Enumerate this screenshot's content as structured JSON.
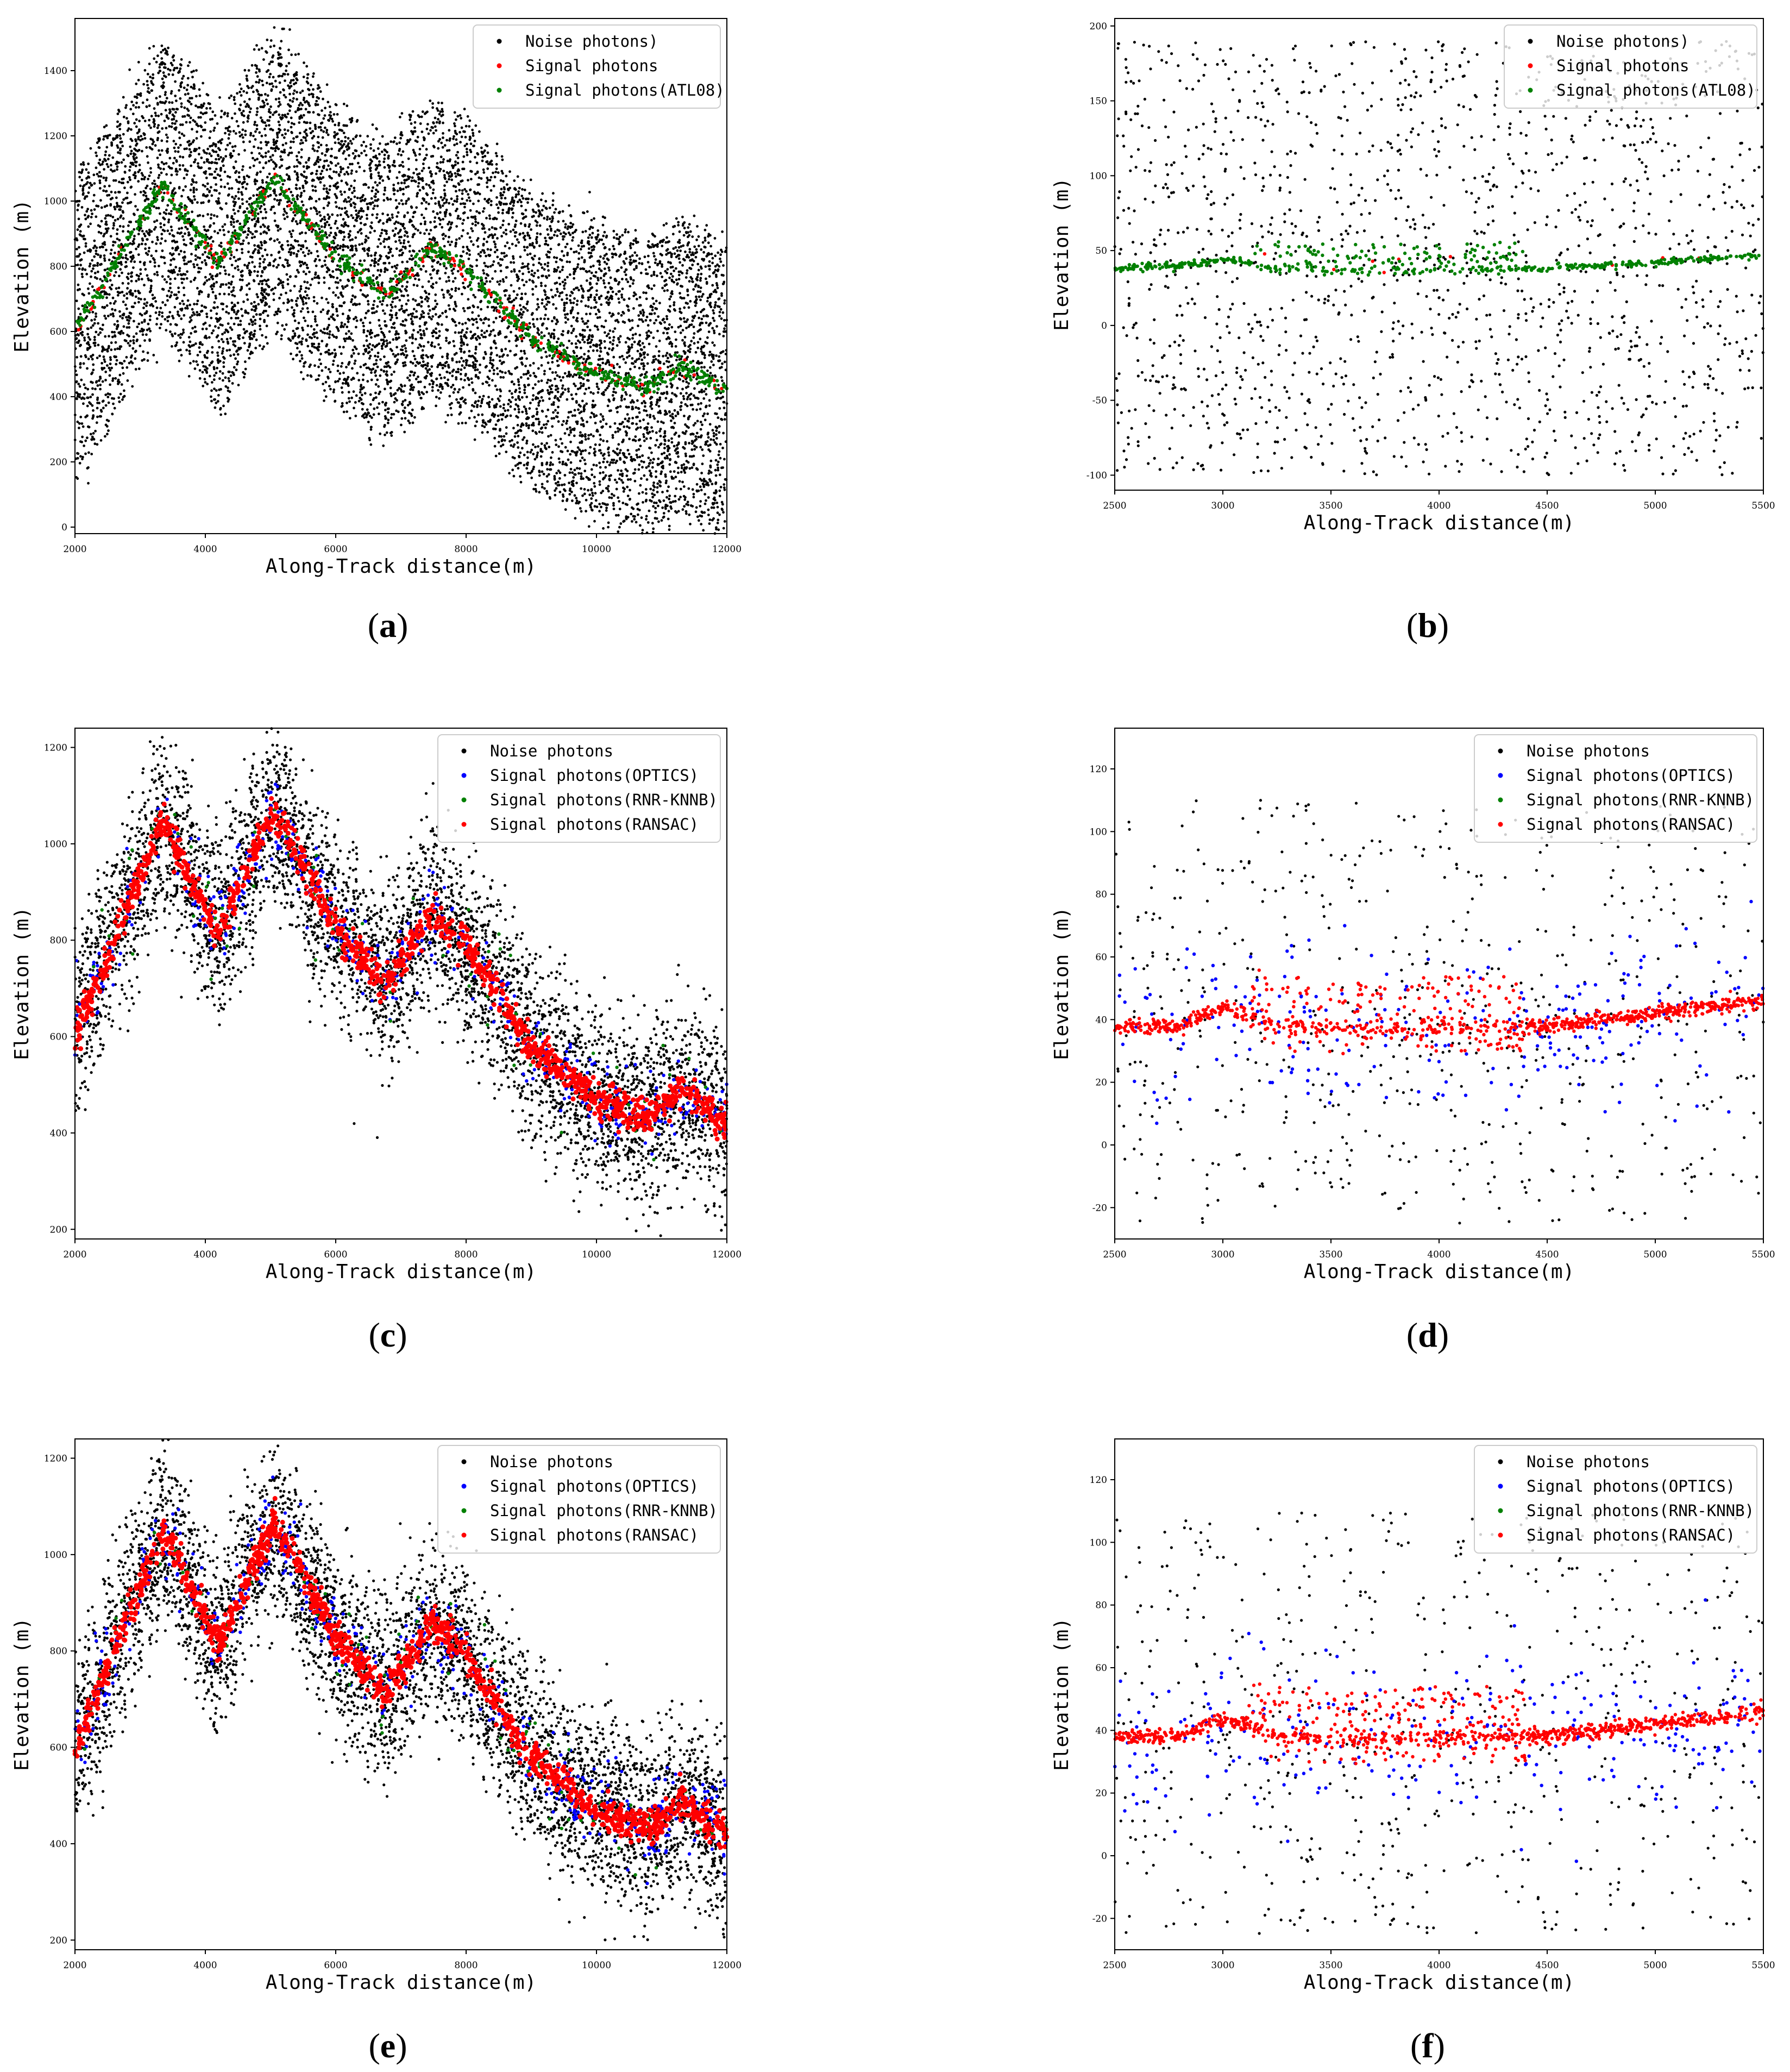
{
  "figure": {
    "panels": [
      {
        "id": "a",
        "label_prefix": "(",
        "label_letter": "a",
        "label_suffix": ")"
      },
      {
        "id": "b",
        "label_prefix": "(",
        "label_letter": "b",
        "label_suffix": ")"
      },
      {
        "id": "c",
        "label_prefix": "(",
        "label_letter": "c",
        "label_suffix": ")"
      },
      {
        "id": "d",
        "label_prefix": "(",
        "label_letter": "d",
        "label_suffix": ")"
      },
      {
        "id": "e",
        "label_prefix": "(",
        "label_letter": "e",
        "label_suffix": ")"
      },
      {
        "id": "f",
        "label_prefix": "(",
        "label_letter": "f",
        "label_suffix": ")"
      }
    ]
  },
  "colors": {
    "noise": "#000000",
    "signal_red": "#ff0000",
    "signal_green": "#008000",
    "signal_blue": "#0000ff",
    "axis": "#000000"
  },
  "chart_data": [
    {
      "id": "a",
      "type": "scatter",
      "xlabel": "Along-Track distance(m)",
      "ylabel": "Elevation (m)",
      "xlim": [
        2000,
        12000
      ],
      "ylim": [
        -20,
        1560
      ],
      "xticks": [
        2000,
        4000,
        6000,
        8000,
        10000,
        12000
      ],
      "yticks": [
        0,
        200,
        400,
        600,
        800,
        1000,
        1200,
        1400
      ],
      "legend": [
        "Noise photons)",
        "Signal photons",
        "Signal photons(ATL08)"
      ],
      "legend_position": "top-right",
      "surface": [
        [
          2000,
          600
        ],
        [
          3350,
          1050
        ],
        [
          4200,
          810
        ],
        [
          5050,
          1070
        ],
        [
          6000,
          830
        ],
        [
          6750,
          710
        ],
        [
          7500,
          860
        ],
        [
          8000,
          790
        ],
        [
          9000,
          580
        ],
        [
          10000,
          470
        ],
        [
          10800,
          430
        ],
        [
          11300,
          490
        ],
        [
          12000,
          420
        ]
      ],
      "noise_band_width": 780,
      "noise_density": "very dense",
      "series": [
        {
          "name": "Noise photons)",
          "color": "#000000",
          "count": 9000
        },
        {
          "name": "Signal photons",
          "color": "#ff0000",
          "count": 180,
          "jitter": 14
        },
        {
          "name": "Signal photons(ATL08)",
          "color": "#008000",
          "count": 700,
          "jitter": 16
        }
      ]
    },
    {
      "id": "b",
      "type": "scatter",
      "xlabel": "Along-Track distance(m)",
      "ylabel": "Elevation (m)",
      "xlim": [
        2500,
        5500
      ],
      "ylim": [
        -110,
        205
      ],
      "xticks": [
        2500,
        3000,
        3500,
        4000,
        4500,
        5000,
        5500
      ],
      "yticks": [
        -100,
        -50,
        0,
        50,
        100,
        150,
        200
      ],
      "legend": [
        "Noise photons)",
        "Signal photons",
        "Signal photons(ATL08)"
      ],
      "legend_position": "top-right",
      "surface": [
        [
          2500,
          38
        ],
        [
          2800,
          40
        ],
        [
          3000,
          44
        ],
        [
          3100,
          42
        ],
        [
          3250,
          38
        ],
        [
          3600,
          37
        ],
        [
          4000,
          37
        ],
        [
          4500,
          38
        ],
        [
          5000,
          42
        ],
        [
          5500,
          47
        ]
      ],
      "noise_range": [
        -100,
        190
      ],
      "series": [
        {
          "name": "Noise photons)",
          "color": "#000000",
          "count": 1500
        },
        {
          "name": "Signal photons",
          "color": "#ff0000",
          "count": 10
        },
        {
          "name": "Signal photons(ATL08)",
          "color": "#008000",
          "count": 520
        }
      ]
    },
    {
      "id": "c",
      "type": "scatter",
      "xlabel": "Along-Track distance(m)",
      "ylabel": "Elevation (m)",
      "xlim": [
        2000,
        12000
      ],
      "ylim": [
        180,
        1240
      ],
      "xticks": [
        2000,
        4000,
        6000,
        8000,
        10000,
        12000
      ],
      "yticks": [
        200,
        400,
        600,
        800,
        1000,
        1200
      ],
      "legend": [
        "Noise photons",
        "Signal photons(OPTICS)",
        "Signal photons(RNR-KNNB)",
        "Signal photons(RANSAC)"
      ],
      "legend_position": "top-right",
      "surface": [
        [
          2000,
          600
        ],
        [
          3350,
          1050
        ],
        [
          4200,
          810
        ],
        [
          5050,
          1070
        ],
        [
          6000,
          830
        ],
        [
          6750,
          710
        ],
        [
          7500,
          860
        ],
        [
          8000,
          790
        ],
        [
          9000,
          580
        ],
        [
          10000,
          470
        ],
        [
          10800,
          430
        ],
        [
          11300,
          490
        ],
        [
          12000,
          420
        ]
      ],
      "noise_band_width": 260,
      "series": [
        {
          "name": "Noise photons",
          "color": "#000000",
          "count": 4500
        },
        {
          "name": "Signal photons(OPTICS)",
          "color": "#0000ff",
          "count": 500
        },
        {
          "name": "Signal photons(RNR-KNNB)",
          "color": "#008000",
          "count": 90
        },
        {
          "name": "Signal photons(RANSAC)",
          "color": "#ff0000",
          "count": 1200
        }
      ]
    },
    {
      "id": "d",
      "type": "scatter",
      "xlabel": "Along-Track distance(m)",
      "ylabel": "Elevation (m)",
      "xlim": [
        2500,
        5500
      ],
      "ylim": [
        -30,
        133
      ],
      "xticks": [
        2500,
        3000,
        3500,
        4000,
        4500,
        5000,
        5500
      ],
      "yticks": [
        -20,
        0,
        20,
        40,
        60,
        80,
        100,
        120
      ],
      "legend": [
        "Noise photons",
        "Signal photons(OPTICS)",
        "Signal photons(RNR-KNNB)",
        "Signal photons(RANSAC)"
      ],
      "legend_position": "top-right",
      "surface": [
        [
          2500,
          38
        ],
        [
          2800,
          38
        ],
        [
          3000,
          44
        ],
        [
          3100,
          42
        ],
        [
          3250,
          38
        ],
        [
          3600,
          37
        ],
        [
          4000,
          38
        ],
        [
          4500,
          38
        ],
        [
          5000,
          42
        ],
        [
          5500,
          46
        ]
      ],
      "noise_range": [
        -25,
        110
      ],
      "series": [
        {
          "name": "Noise photons",
          "color": "#000000",
          "count": 600
        },
        {
          "name": "Signal photons(OPTICS)",
          "color": "#0000ff",
          "count": 260
        },
        {
          "name": "Signal photons(RNR-KNNB)",
          "color": "#008000",
          "count": 0
        },
        {
          "name": "Signal photons(RANSAC)",
          "color": "#ff0000",
          "count": 900
        }
      ]
    },
    {
      "id": "e",
      "type": "scatter",
      "xlabel": "Along-Track distance(m)",
      "ylabel": "Elevation (m)",
      "xlim": [
        2000,
        12000
      ],
      "ylim": [
        180,
        1240
      ],
      "xticks": [
        2000,
        4000,
        6000,
        8000,
        10000,
        12000
      ],
      "yticks": [
        200,
        400,
        600,
        800,
        1000,
        1200
      ],
      "legend": [
        "Noise photons",
        "Signal photons(OPTICS)",
        "Signal photons(RNR-KNNB)",
        "Signal photons(RANSAC)"
      ],
      "legend_position": "top-right",
      "surface": [
        [
          2000,
          600
        ],
        [
          3350,
          1050
        ],
        [
          4200,
          810
        ],
        [
          5050,
          1070
        ],
        [
          6000,
          830
        ],
        [
          6750,
          710
        ],
        [
          7500,
          860
        ],
        [
          8000,
          790
        ],
        [
          9000,
          580
        ],
        [
          10000,
          470
        ],
        [
          10800,
          430
        ],
        [
          11300,
          490
        ],
        [
          12000,
          420
        ]
      ],
      "noise_band_width": 260,
      "series": [
        {
          "name": "Noise photons",
          "color": "#000000",
          "count": 4500
        },
        {
          "name": "Signal photons(OPTICS)",
          "color": "#0000ff",
          "count": 520
        },
        {
          "name": "Signal photons(RNR-KNNB)",
          "color": "#008000",
          "count": 90
        },
        {
          "name": "Signal photons(RANSAC)",
          "color": "#ff0000",
          "count": 1250
        }
      ]
    },
    {
      "id": "f",
      "type": "scatter",
      "xlabel": "Along-Track distance(m)",
      "ylabel": "Elevation (m)",
      "xlim": [
        2500,
        5500
      ],
      "ylim": [
        -30,
        133
      ],
      "xticks": [
        2500,
        3000,
        3500,
        4000,
        4500,
        5000,
        5500
      ],
      "yticks": [
        -20,
        0,
        20,
        40,
        60,
        80,
        100,
        120
      ],
      "legend": [
        "Noise photons",
        "Signal photons(OPTICS)",
        "Signal photons(RNR-KNNB)",
        "Signal photons(RANSAC)"
      ],
      "legend_position": "top-right",
      "surface": [
        [
          2500,
          38
        ],
        [
          2800,
          38
        ],
        [
          3000,
          44
        ],
        [
          3100,
          42
        ],
        [
          3250,
          38
        ],
        [
          3600,
          37
        ],
        [
          4000,
          38
        ],
        [
          4500,
          38
        ],
        [
          5000,
          42
        ],
        [
          5500,
          46
        ]
      ],
      "noise_range": [
        -25,
        110
      ],
      "series": [
        {
          "name": "Noise photons",
          "color": "#000000",
          "count": 600
        },
        {
          "name": "Signal photons(OPTICS)",
          "color": "#0000ff",
          "count": 260
        },
        {
          "name": "Signal photons(RNR-KNNB)",
          "color": "#008000",
          "count": 0
        },
        {
          "name": "Signal photons(RANSAC)",
          "color": "#ff0000",
          "count": 950
        }
      ]
    }
  ]
}
